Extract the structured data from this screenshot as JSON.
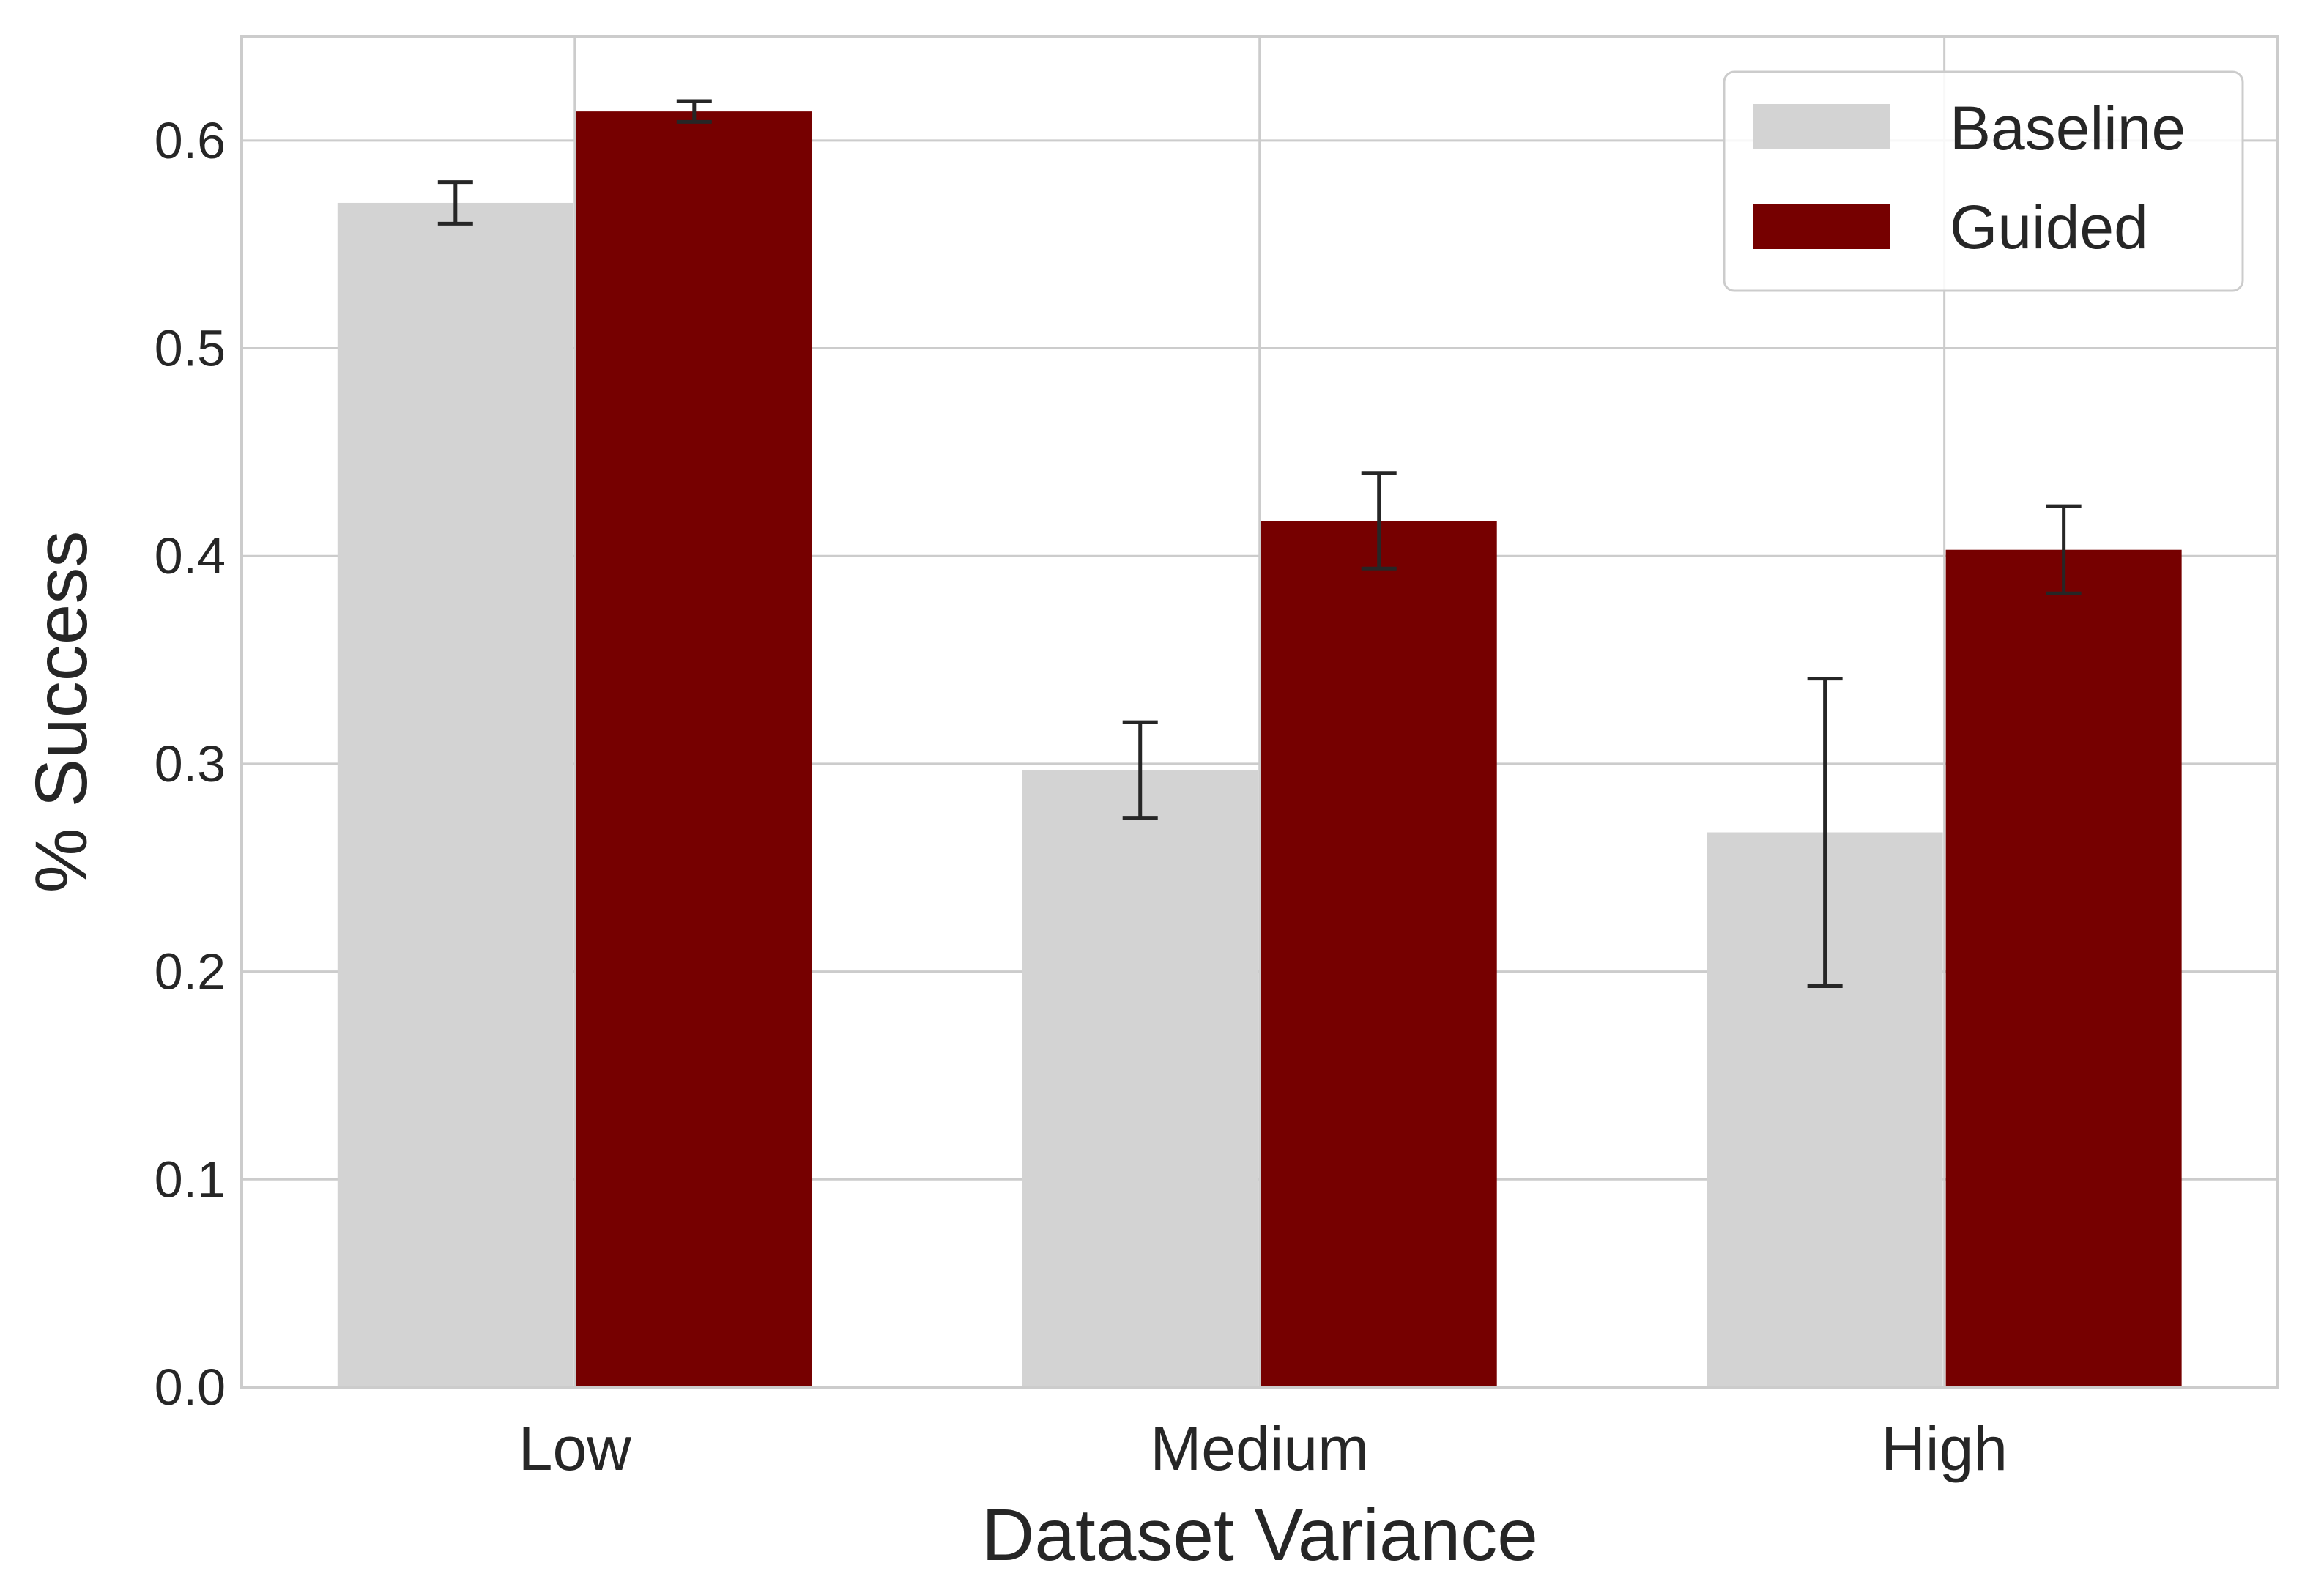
{
  "chart_data": {
    "type": "bar",
    "xlabel": "Dataset Variance",
    "ylabel": "% Success",
    "categories": [
      "Low",
      "Medium",
      "High"
    ],
    "series": [
      {
        "name": "Baseline",
        "color": "#d3d3d3",
        "values": [
          0.57,
          0.297,
          0.267
        ],
        "errors": [
          0.01,
          0.023,
          0.074
        ]
      },
      {
        "name": "Guided",
        "color": "#760000",
        "values": [
          0.614,
          0.417,
          0.403
        ],
        "errors": [
          0.005,
          0.023,
          0.021
        ]
      }
    ],
    "ylim": [
      0,
      0.65
    ],
    "yticks": [
      0.0,
      0.1,
      0.2,
      0.3,
      0.4,
      0.5,
      0.6
    ],
    "ytick_labels": [
      "0.0",
      "0.1",
      "0.2",
      "0.3",
      "0.4",
      "0.5",
      "0.6"
    ],
    "grid": true,
    "legend": "top-right"
  }
}
